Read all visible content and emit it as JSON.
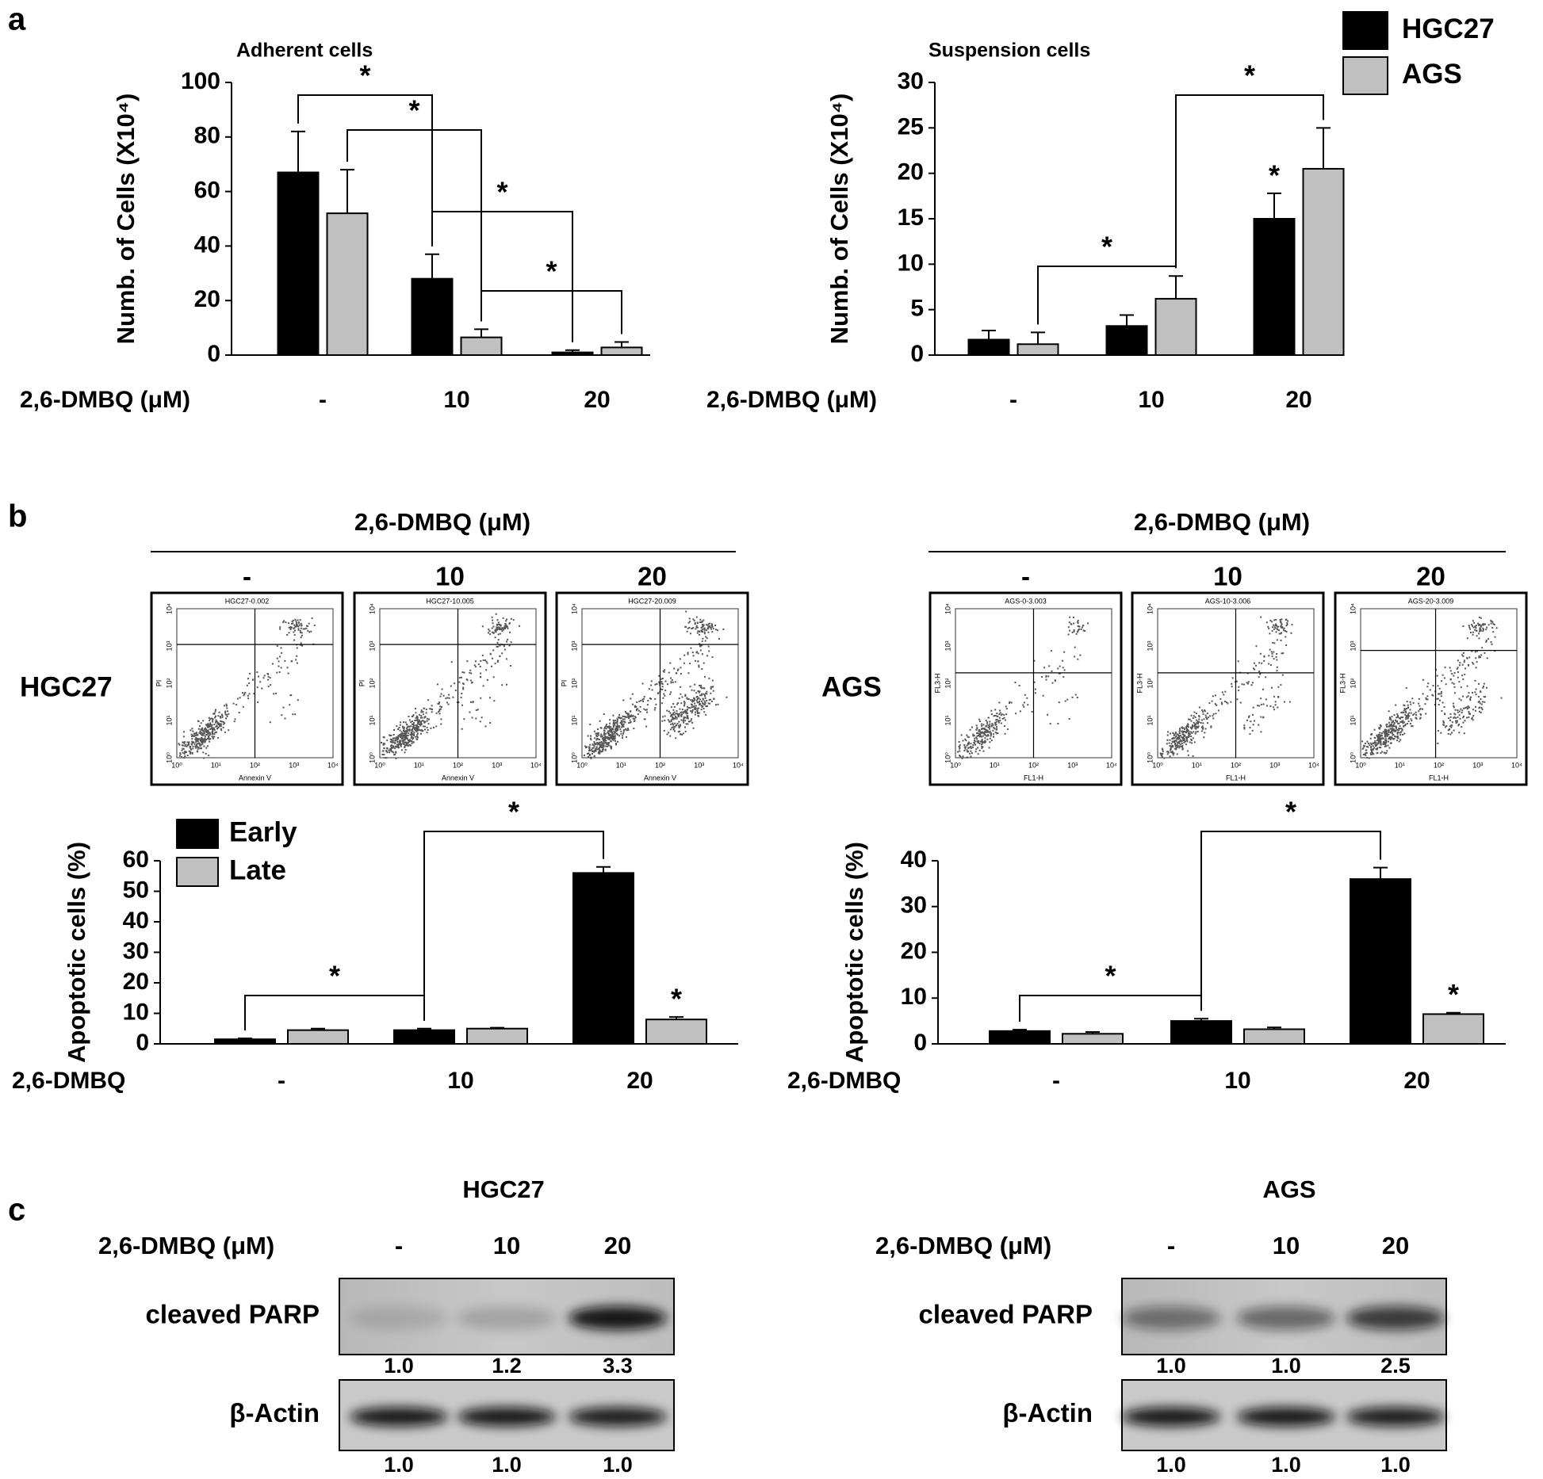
{
  "panel_labels": [
    "a",
    "b",
    "c"
  ],
  "chart_data": [
    {
      "type": "bar",
      "title": "Adherent cells",
      "ylabel": "Numb. of Cells (X10⁴)",
      "xlabel": "2,6-DMBQ (μM)",
      "categories": [
        "-",
        "10",
        "20"
      ],
      "series": [
        {
          "color": "#000000",
          "values": [
            67,
            28,
            1
          ],
          "errors": [
            15,
            9,
            0.8
          ]
        },
        {
          "color": "#c0c0c0",
          "values": [
            52,
            6.5,
            2.8
          ],
          "errors": [
            16,
            3,
            2
          ]
        }
      ],
      "ylim": [
        0,
        100
      ],
      "yticks": [
        0,
        20,
        40,
        60,
        80,
        100
      ],
      "annotations": [
        "*",
        "*",
        "*",
        "*"
      ]
    },
    {
      "type": "bar",
      "title": "Suspension cells",
      "ylabel": "Numb. of Cells (X10⁴)",
      "xlabel": "2,6-DMBQ (μM)",
      "categories": [
        "-",
        "10",
        "20"
      ],
      "series": [
        {
          "name": "HGC27",
          "color": "#000000",
          "values": [
            1.7,
            3.2,
            15
          ],
          "errors": [
            1,
            1.2,
            2.8
          ]
        },
        {
          "name": "AGS",
          "color": "#c0c0c0",
          "values": [
            1.2,
            6.2,
            20.5
          ],
          "errors": [
            1.3,
            2.5,
            4.5
          ]
        }
      ],
      "ylim": [
        0,
        30
      ],
      "yticks": [
        0,
        5,
        10,
        15,
        20,
        25,
        30
      ],
      "legend": "upper right",
      "annotations": [
        "*",
        "*",
        "*"
      ]
    },
    {
      "type": "bar",
      "ylabel": "Apoptotic cells (%)",
      "xlabel": "2,6-DMBQ",
      "categories": [
        "-",
        "10",
        "20"
      ],
      "series": [
        {
          "name": "Early",
          "color": "#000000",
          "values": [
            1.5,
            4.5,
            56
          ],
          "errors": [
            0.3,
            0.5,
            2
          ]
        },
        {
          "name": "Late",
          "color": "#c0c0c0",
          "values": [
            4.5,
            5,
            8
          ],
          "errors": [
            0.5,
            0.3,
            0.8
          ]
        }
      ],
      "ylim": [
        0,
        60
      ],
      "yticks": [
        0,
        10,
        20,
        30,
        40,
        50,
        60
      ],
      "legend": "upper left",
      "annotations": [
        "*",
        "*",
        "*"
      ]
    },
    {
      "type": "bar",
      "ylabel": "Apoptotic cells (%)",
      "xlabel": "2,6-DMBQ",
      "categories": [
        "-",
        "10",
        "20"
      ],
      "series": [
        {
          "color": "#000000",
          "values": [
            2.8,
            5,
            36
          ],
          "errors": [
            0.3,
            0.5,
            2.5
          ]
        },
        {
          "color": "#c0c0c0",
          "values": [
            2.2,
            3.2,
            6.5
          ],
          "errors": [
            0.4,
            0.4,
            0.3
          ]
        }
      ],
      "ylim": [
        0,
        40
      ],
      "yticks": [
        0,
        10,
        20,
        30,
        40
      ],
      "annotations": [
        "*",
        "*",
        "*"
      ]
    }
  ],
  "flow_cytometry": {
    "headers": [
      "2,6-DMBQ (μM)",
      "2,6-DMBQ (μM)"
    ],
    "doses": [
      "-",
      "10",
      "20"
    ],
    "cell_lines": [
      "HGC27",
      "AGS"
    ],
    "ticks": [
      "10⁰",
      "10¹",
      "10²",
      "10³",
      "10⁴"
    ],
    "plots": [
      [
        {
          "title": "HGC27-0.002",
          "xlabel": "Annexin V",
          "ylabel": "PI"
        },
        {
          "title": "HGC27-10.005",
          "xlabel": "Annexin V",
          "ylabel": "PI"
        },
        {
          "title": "HGC27-20.009",
          "xlabel": "Annexin V",
          "ylabel": "PI"
        }
      ],
      [
        {
          "title": "AGS-0-3.003",
          "xlabel": "FL1-H",
          "ylabel": "FL3-H"
        },
        {
          "title": "AGS-10-3.006",
          "xlabel": "FL1-H",
          "ylabel": "FL3-H"
        },
        {
          "title": "AGS-20-3.009",
          "xlabel": "FL1-H",
          "ylabel": "FL3-H"
        }
      ]
    ]
  },
  "western_blot": {
    "groups": [
      {
        "title": "HGC27",
        "treatment": "2,6-DMBQ (μM)",
        "lanes": [
          "-",
          "10",
          "20"
        ],
        "rows": [
          {
            "label": "cleaved PARP",
            "quant": [
              "1.0",
              "1.2",
              "3.3"
            ]
          },
          {
            "label": "β-Actin",
            "quant": [
              "1.0",
              "1.0",
              "1.0"
            ]
          }
        ]
      },
      {
        "title": "AGS",
        "treatment": "2,6-DMBQ (μM)",
        "lanes": [
          "-",
          "10",
          "20"
        ],
        "rows": [
          {
            "label": "cleaved PARP",
            "quant": [
              "1.0",
              "1.0",
              "2.5"
            ]
          },
          {
            "label": "β-Actin",
            "quant": [
              "1.0",
              "1.0",
              "1.0"
            ]
          }
        ]
      }
    ]
  }
}
